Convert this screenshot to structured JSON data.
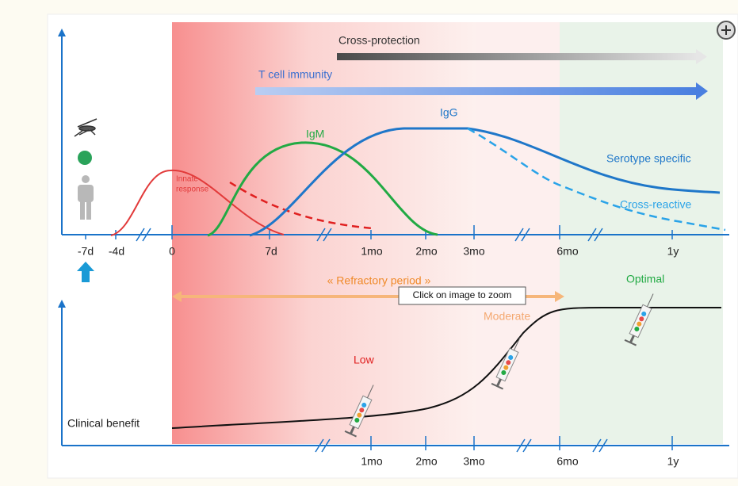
{
  "labels": {
    "cross_protection": "Cross-protection",
    "t_cell_immunity": "T cell immunity",
    "igg": "IgG",
    "igm": "IgM",
    "innate_response": [
      "Innate",
      "response"
    ],
    "serotype_specific": "Serotype specific",
    "cross_reactive": "Cross-reactive",
    "refractory_period": "« Refractory period »",
    "optimal": "Optimal",
    "moderate": "Moderate",
    "low": "Low",
    "clinical_benefit": "Clinical benefit"
  },
  "top_axis_ticks": [
    "-7d",
    "-4d",
    "0",
    "7d",
    "1mo",
    "2mo",
    "3mo",
    "6mo",
    "1y"
  ],
  "bottom_axis_ticks": [
    "1mo",
    "2mo",
    "3mo",
    "6mo",
    "1y"
  ],
  "tooltip": "Click on image to zoom"
}
